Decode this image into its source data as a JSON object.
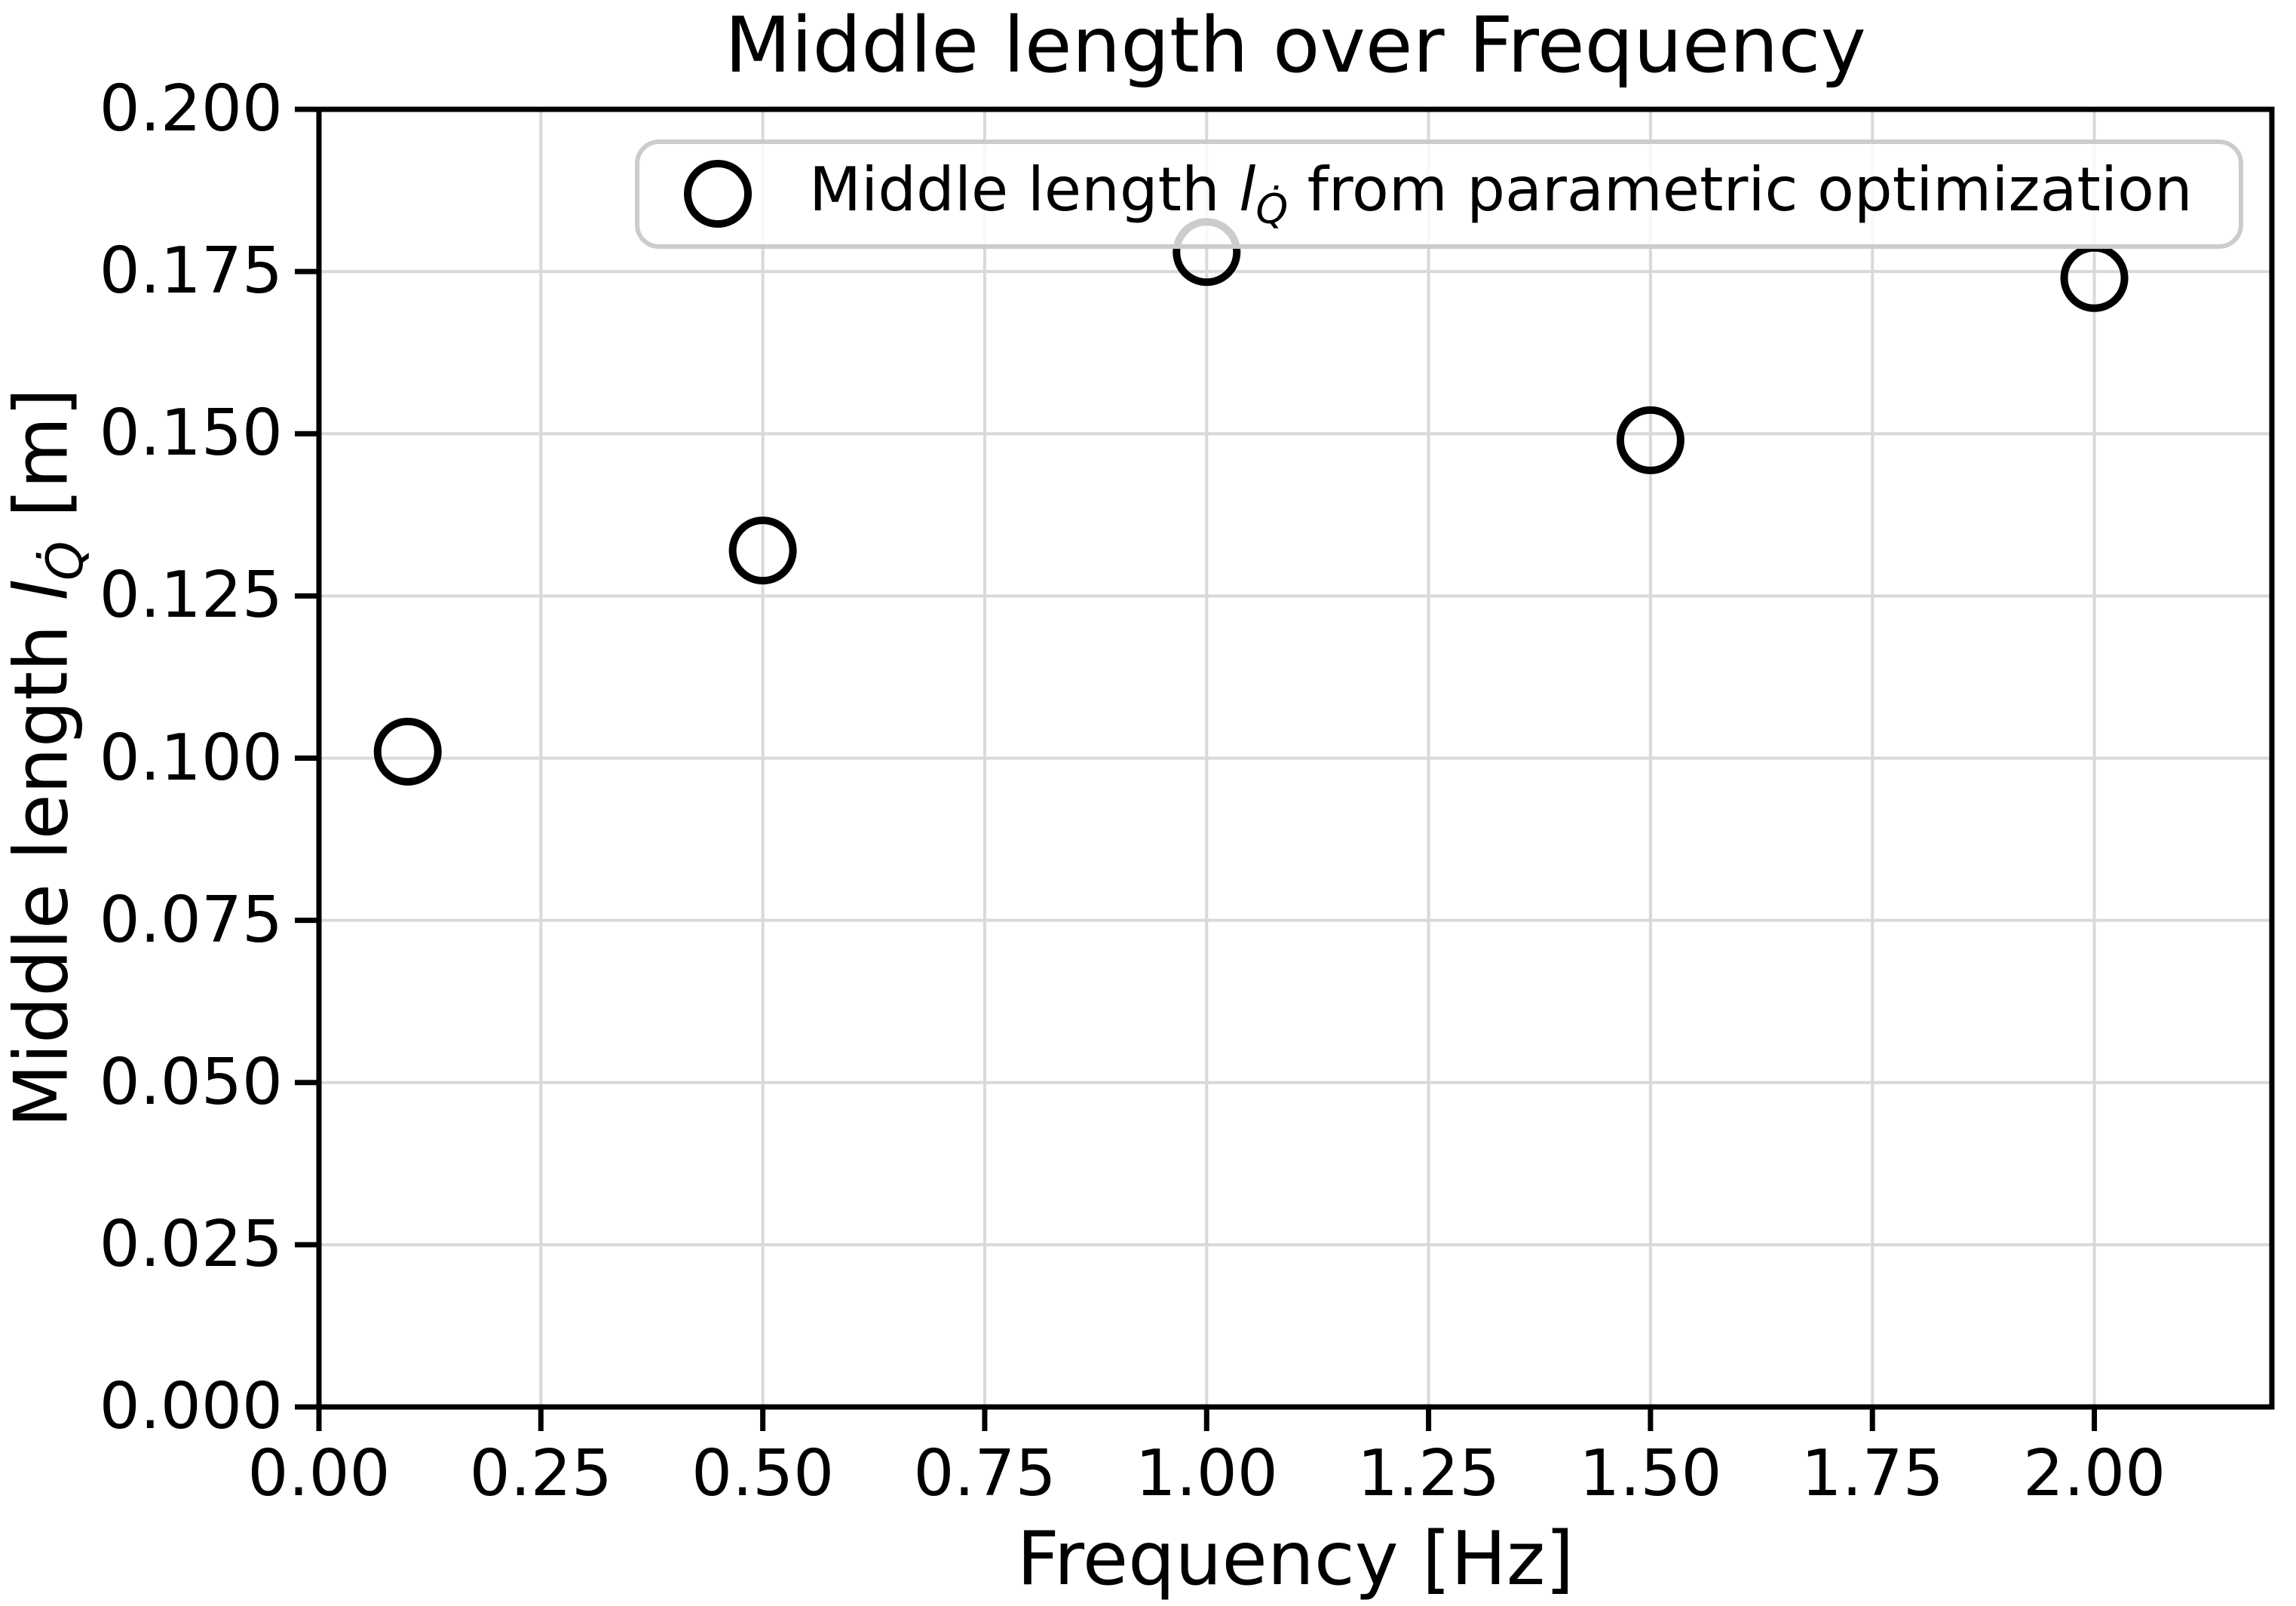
{
  "figure": {
    "background": "#ffffff"
  },
  "chart_data": {
    "type": "scatter",
    "title": "Middle length over Frequency",
    "xlabel": "Frequency [Hz]",
    "ylabel_parts": {
      "prefix": "Middle length ",
      "symbol": "l",
      "subscript": "Q̇",
      "suffix": " [m]"
    },
    "series": [
      {
        "name": "Middle length l_Q̇ from parametric optimization",
        "marker": "open-circle",
        "color": "#000000",
        "x": [
          0.1,
          0.5,
          1.0,
          1.5,
          2.0
        ],
        "y": [
          0.101,
          0.132,
          0.178,
          0.149,
          0.174
        ]
      }
    ],
    "xlim": [
      0.0,
      2.2
    ],
    "ylim": [
      0.0,
      0.2
    ],
    "x_ticks": [
      "0.00",
      "0.25",
      "0.50",
      "0.75",
      "1.00",
      "1.25",
      "1.50",
      "1.75",
      "2.00"
    ],
    "y_ticks": [
      "0.000",
      "0.025",
      "0.050",
      "0.075",
      "0.100",
      "0.125",
      "0.150",
      "0.175",
      "0.200"
    ],
    "grid": true,
    "legend": {
      "position": "upper center",
      "label_parts": {
        "prefix": "Middle length ",
        "symbol": "l",
        "subscript": "Q̇",
        "suffix": " from parametric optimization"
      }
    },
    "colors": {
      "grid": "#d9d9d9",
      "spine": "#000000",
      "marker": "#000000",
      "text": "#000000",
      "legend_border": "#cccccc"
    }
  }
}
